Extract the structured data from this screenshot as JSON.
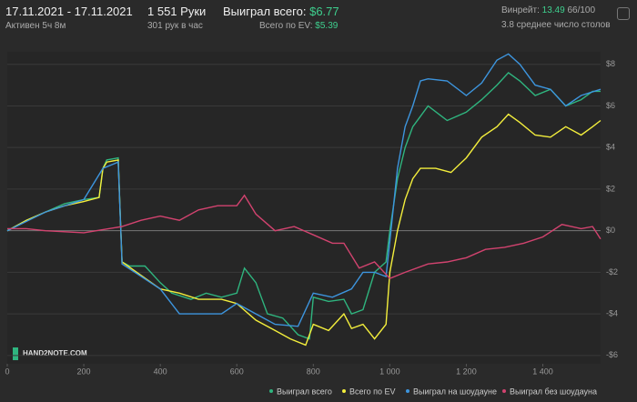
{
  "header": {
    "date_range": "17.11.2021 - 17.11.2021",
    "active": "Активен 5ч 8м",
    "hands": "1 551 Руки",
    "hands_per_hour": "301 рук в час",
    "won_total_label": "Выиграл всего:",
    "won_total": "$6.77",
    "ev_total_label": "Всего по EV:",
    "ev_total": "$5.39",
    "winrate_label": "Винрейт:",
    "winrate": "13.49",
    "winrate_sample": "66/100",
    "tables": "3.8 среднее число столов",
    "logo": "HAND2NOTE.COM"
  },
  "chart_data": {
    "type": "line",
    "xlim": [
      0,
      1551
    ],
    "ylim": [
      -6.4,
      8.6
    ],
    "xticks": [
      0,
      200,
      400,
      600,
      800,
      {
        "value": 1000,
        "label": "1 000"
      },
      {
        "value": 1200,
        "label": "1 200"
      },
      {
        "value": 1400,
        "label": "1 400"
      }
    ],
    "yticks": [
      {
        "value": 8,
        "label": "$8"
      },
      {
        "value": 6,
        "label": "$6"
      },
      {
        "value": 4,
        "label": "$4"
      },
      {
        "value": 2,
        "label": "$2"
      },
      {
        "value": 0,
        "label": "$0"
      },
      {
        "value": -2,
        "label": "-$2"
      },
      {
        "value": -4,
        "label": "-$4"
      },
      {
        "value": -6,
        "label": "-$6"
      }
    ],
    "grid": true,
    "series": [
      {
        "name": "Выиграл всего",
        "color": "#2fb57f",
        "x": [
          0,
          20,
          50,
          100,
          150,
          200,
          240,
          250,
          260,
          290,
          295,
          300,
          320,
          360,
          400,
          430,
          480,
          520,
          560,
          600,
          620,
          650,
          680,
          720,
          760,
          790,
          800,
          840,
          880,
          900,
          930,
          960,
          990,
          1000,
          1020,
          1040,
          1060,
          1080,
          1100,
          1150,
          1200,
          1240,
          1280,
          1310,
          1340,
          1380,
          1420,
          1460,
          1500,
          1530,
          1551
        ],
        "values": [
          0,
          0.2,
          0.5,
          0.9,
          1.3,
          1.5,
          1.6,
          3,
          3.4,
          3.5,
          0.9,
          -1.5,
          -1.7,
          -1.7,
          -2.5,
          -3,
          -3.3,
          -3,
          -3.2,
          -3,
          -1.8,
          -2.5,
          -4,
          -4.2,
          -5,
          -5.2,
          -3.2,
          -3.4,
          -3.3,
          -4,
          -3.8,
          -2,
          -1.5,
          0,
          2.5,
          4,
          5,
          5.5,
          6,
          5.3,
          5.7,
          6.3,
          7,
          7.6,
          7.2,
          6.5,
          6.8,
          6,
          6.3,
          6.7,
          6.7
        ]
      },
      {
        "name": "Всего по EV",
        "color": "#f3ee3c",
        "x": [
          0,
          50,
          100,
          150,
          200,
          240,
          250,
          260,
          290,
          295,
          300,
          400,
          450,
          500,
          560,
          600,
          650,
          700,
          740,
          780,
          800,
          840,
          880,
          900,
          930,
          960,
          990,
          1000,
          1020,
          1040,
          1060,
          1080,
          1120,
          1160,
          1200,
          1240,
          1280,
          1310,
          1340,
          1380,
          1420,
          1460,
          1500,
          1530,
          1551
        ],
        "values": [
          0,
          0.5,
          0.9,
          1.2,
          1.4,
          1.6,
          3,
          3.3,
          3.4,
          0.9,
          -1.5,
          -2.8,
          -3,
          -3.3,
          -3.3,
          -3.5,
          -4.3,
          -4.8,
          -5.2,
          -5.5,
          -4.5,
          -4.8,
          -4,
          -4.7,
          -4.5,
          -5.2,
          -4.5,
          -2,
          0,
          1.5,
          2.5,
          3,
          3,
          2.8,
          3.5,
          4.5,
          5,
          5.6,
          5.2,
          4.6,
          4.5,
          5,
          4.6,
          5,
          5.3
        ]
      },
      {
        "name": "Выиграл на шоудауне",
        "color": "#3d95de",
        "x": [
          0,
          100,
          200,
          250,
          290,
          300,
          400,
          450,
          500,
          560,
          600,
          650,
          700,
          760,
          800,
          850,
          900,
          930,
          960,
          990,
          1000,
          1020,
          1040,
          1060,
          1080,
          1100,
          1150,
          1200,
          1240,
          1280,
          1310,
          1340,
          1380,
          1420,
          1460,
          1500,
          1551
        ],
        "values": [
          0,
          0.9,
          1.5,
          3,
          3.3,
          -1.6,
          -2.8,
          -4,
          -4,
          -4,
          -3.5,
          -4,
          -4.5,
          -4.6,
          -3,
          -3.2,
          -2.8,
          -2,
          -2,
          -2.2,
          -0.5,
          3,
          5,
          6,
          7.2,
          7.3,
          7.2,
          6.5,
          7.1,
          8.2,
          8.5,
          8,
          7,
          6.8,
          6,
          6.5,
          6.8
        ]
      },
      {
        "name": "Выиграл без шоудауна",
        "color": "#d2436f",
        "x": [
          0,
          50,
          100,
          200,
          300,
          350,
          400,
          450,
          500,
          550,
          600,
          620,
          650,
          700,
          750,
          800,
          850,
          880,
          920,
          960,
          1000,
          1040,
          1100,
          1150,
          1200,
          1250,
          1300,
          1350,
          1400,
          1450,
          1500,
          1530,
          1551
        ],
        "values": [
          0.1,
          0.1,
          0,
          -0.1,
          0.2,
          0.5,
          0.7,
          0.5,
          1,
          1.2,
          1.2,
          1.7,
          0.8,
          0,
          0.2,
          -0.2,
          -0.6,
          -0.6,
          -1.8,
          -1.5,
          -2.3,
          -2,
          -1.6,
          -1.5,
          -1.3,
          -0.9,
          -0.8,
          -0.6,
          -0.3,
          0.3,
          0.1,
          0.2,
          -0.4
        ]
      }
    ]
  }
}
